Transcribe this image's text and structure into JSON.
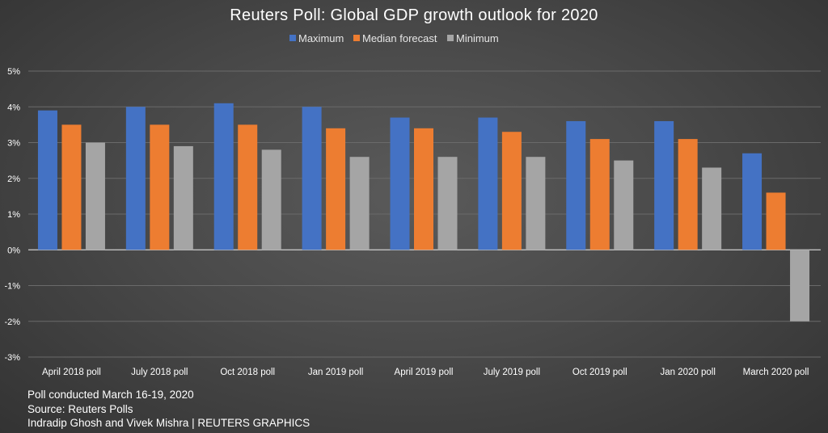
{
  "chart_data": {
    "type": "bar",
    "title": "Reuters Poll: Global GDP growth outlook for 2020",
    "categories": [
      "April 2018 poll",
      "July 2018 poll",
      "Oct 2018 poll",
      "Jan 2019 poll",
      "April 2019 poll",
      "July 2019 poll",
      "Oct 2019 poll",
      "Jan 2020 poll",
      "March 2020 poll"
    ],
    "series": [
      {
        "name": "Maximum",
        "color": "#4472c4",
        "values": [
          3.9,
          4.0,
          4.1,
          4.0,
          3.7,
          3.7,
          3.6,
          3.6,
          2.7
        ]
      },
      {
        "name": "Median forecast",
        "color": "#ed7d31",
        "values": [
          3.5,
          3.5,
          3.5,
          3.4,
          3.4,
          3.3,
          3.1,
          3.1,
          1.6
        ]
      },
      {
        "name": "Minimum",
        "color": "#a5a5a5",
        "values": [
          3.0,
          2.9,
          2.8,
          2.6,
          2.6,
          2.6,
          2.5,
          2.3,
          -2.0
        ]
      }
    ],
    "ylim": [
      -3,
      5
    ],
    "yticks": [
      5,
      4,
      3,
      2,
      1,
      0,
      -1,
      -2,
      -3
    ],
    "ytick_labels": [
      "5%",
      "4%",
      "3%",
      "2%",
      "1%",
      "0%",
      "-1%",
      "-2%",
      "-3%"
    ],
    "grid": true,
    "legend_position": "top-center",
    "xlabel": "",
    "ylabel": ""
  },
  "footer": {
    "line1": "Poll conducted March 16-19, 2020",
    "line2": "Source: Reuters Polls",
    "line3": "Indradip Ghosh and Vivek Mishra | REUTERS GRAPHICS"
  }
}
